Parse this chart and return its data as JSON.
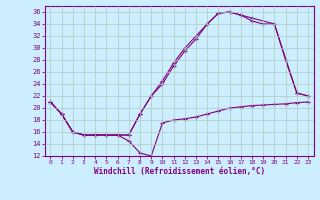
{
  "xlabel": "Windchill (Refroidissement éolien,°C)",
  "bg_color": "#cceeff",
  "line_color": "#800080",
  "grid_color": "#aaccbb",
  "xlim": [
    -0.5,
    23.5
  ],
  "ylim": [
    12,
    37
  ],
  "xticks": [
    0,
    1,
    2,
    3,
    4,
    5,
    6,
    7,
    8,
    9,
    10,
    11,
    12,
    13,
    14,
    15,
    16,
    17,
    18,
    19,
    20,
    21,
    22,
    23
  ],
  "yticks": [
    12,
    14,
    16,
    18,
    20,
    22,
    24,
    26,
    28,
    30,
    32,
    34,
    36
  ],
  "line1_x": [
    0,
    1,
    2,
    3,
    4,
    5,
    6,
    7,
    8,
    9,
    10,
    11,
    12,
    13,
    14,
    15,
    16,
    17,
    18,
    19,
    20,
    21,
    22,
    23
  ],
  "line1_y": [
    21,
    19,
    16,
    15.5,
    15.5,
    15.5,
    15.5,
    14.5,
    12.5,
    12,
    17.5,
    18,
    18.2,
    18.5,
    19,
    19.5,
    20,
    20.2,
    20.4,
    20.5,
    20.6,
    20.7,
    20.9,
    21.0
  ],
  "line2_x": [
    0,
    1,
    2,
    3,
    4,
    5,
    6,
    7,
    8,
    9,
    10,
    11,
    12,
    13,
    14,
    15,
    16,
    17,
    18,
    20,
    21,
    22,
    23
  ],
  "line2_y": [
    21,
    19,
    16,
    15.5,
    15.5,
    15.5,
    15.5,
    15.5,
    19,
    22,
    24,
    27,
    29.5,
    31.5,
    34,
    35.8,
    36,
    35.5,
    35,
    34,
    28,
    22.5,
    22
  ],
  "line3_x": [
    0,
    1,
    2,
    3,
    4,
    5,
    6,
    7,
    8,
    9,
    10,
    11,
    12,
    13,
    14,
    15,
    16,
    17,
    18,
    19,
    20,
    22,
    23
  ],
  "line3_y": [
    21,
    19,
    16,
    15.5,
    15.5,
    15.5,
    15.5,
    15.5,
    19,
    22,
    24.5,
    27.5,
    30,
    32,
    34,
    35.8,
    36,
    35.5,
    34.5,
    34,
    34,
    22.5,
    22
  ]
}
